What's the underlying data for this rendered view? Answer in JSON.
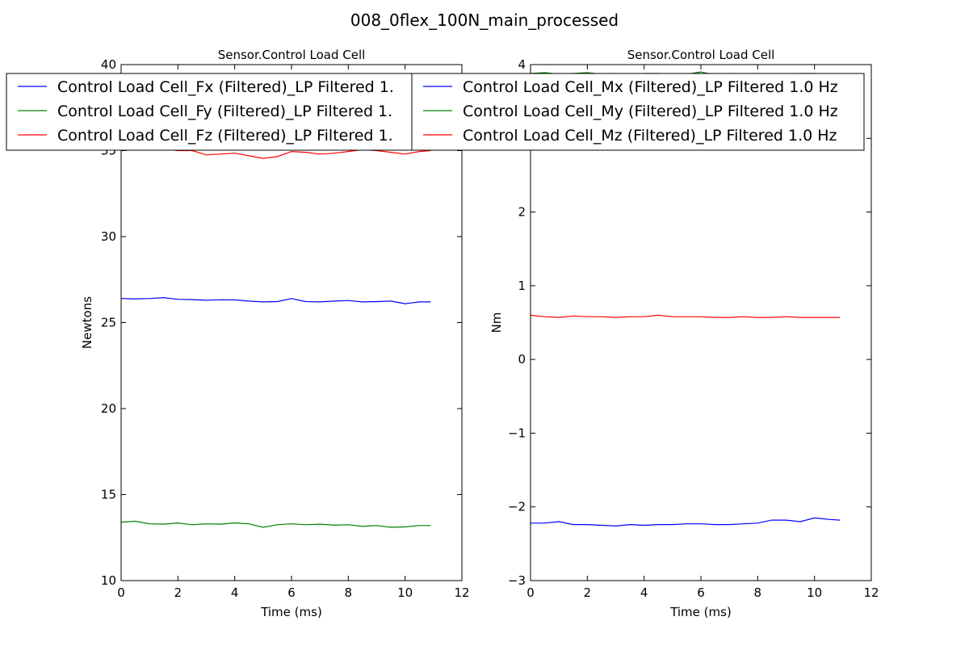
{
  "figure": {
    "title": "008_0flex_100N_main_processed"
  },
  "chart_data": [
    {
      "type": "line",
      "title": "Sensor.Control Load Cell",
      "xlabel": "Time (ms)",
      "ylabel": "Newtons",
      "xlim": [
        0,
        12
      ],
      "ylim": [
        10,
        40
      ],
      "xticks": [
        "0",
        "2",
        "4",
        "6",
        "8",
        "10",
        "12"
      ],
      "yticks": [
        "10",
        "15",
        "20",
        "25",
        "30",
        "35",
        "40"
      ],
      "grid": false,
      "legend_position": "top",
      "legend_labels": [
        "Control Load Cell_Fx (Filtered)_LP Filtered 1.",
        "Control Load Cell_Fy (Filtered)_LP Filtered 1.",
        "Control Load Cell_Fz (Filtered)_LP Filtered 1."
      ],
      "series": [
        {
          "color": "#0000ff",
          "x": [
            0,
            0.5,
            1,
            1.5,
            2,
            2.5,
            3,
            3.5,
            4,
            4.5,
            5,
            5.5,
            6,
            6.5,
            7,
            7.5,
            8,
            8.5,
            9,
            9.5,
            10,
            10.5,
            10.9
          ],
          "y": [
            26.4,
            26.38,
            26.4,
            26.45,
            26.35,
            26.34,
            26.3,
            26.33,
            26.32,
            26.25,
            26.2,
            26.22,
            26.4,
            26.22,
            26.2,
            26.25,
            26.28,
            26.2,
            26.22,
            26.25,
            26.1,
            26.2,
            26.2
          ]
        },
        {
          "color": "#008000",
          "x": [
            0,
            0.5,
            1,
            1.5,
            2,
            2.5,
            3,
            3.5,
            4,
            4.5,
            5,
            5.5,
            6,
            6.5,
            7,
            7.5,
            8,
            8.5,
            9,
            9.5,
            10,
            10.5,
            10.9
          ],
          "y": [
            13.4,
            13.45,
            13.3,
            13.28,
            13.35,
            13.25,
            13.3,
            13.28,
            13.35,
            13.3,
            13.1,
            13.25,
            13.3,
            13.25,
            13.28,
            13.22,
            13.25,
            13.15,
            13.2,
            13.1,
            13.12,
            13.2,
            13.2
          ]
        },
        {
          "color": "#ff0000",
          "x": [
            0,
            0.5,
            1,
            1.5,
            2,
            2.5,
            3,
            3.5,
            4,
            4.5,
            5,
            5.5,
            6,
            6.5,
            7,
            7.5,
            8,
            8.5,
            9,
            9.5,
            10,
            10.5,
            10.9
          ],
          "y": [
            35.0,
            35.05,
            35.2,
            35.1,
            35.0,
            35.0,
            34.75,
            34.8,
            34.85,
            34.7,
            34.55,
            34.65,
            34.95,
            34.9,
            34.8,
            34.85,
            34.95,
            35.05,
            35.0,
            34.9,
            34.8,
            34.95,
            35.0
          ]
        }
      ]
    },
    {
      "type": "line",
      "title": "Sensor.Control Load Cell",
      "xlabel": "Time (ms)",
      "ylabel": "Nm",
      "xlim": [
        0,
        12
      ],
      "ylim": [
        -3,
        4
      ],
      "xticks": [
        "0",
        "2",
        "4",
        "6",
        "8",
        "10",
        "12"
      ],
      "yticks": [
        "−3",
        "−2",
        "−1",
        "0",
        "1",
        "2",
        "3",
        "4"
      ],
      "grid": false,
      "legend_position": "top",
      "legend_labels": [
        "Control Load Cell_Mx (Filtered)_LP Filtered 1.0 Hz",
        "Control Load Cell_My (Filtered)_LP Filtered 1.0 Hz",
        "Control Load Cell_Mz (Filtered)_LP Filtered 1.0 Hz"
      ],
      "series": [
        {
          "color": "#0000ff",
          "x": [
            0,
            0.5,
            1,
            1.5,
            2,
            2.5,
            3,
            3.5,
            4,
            4.5,
            5,
            5.5,
            6,
            6.5,
            7,
            7.5,
            8,
            8.5,
            9,
            9.5,
            10,
            10.5,
            10.9
          ],
          "y": [
            -2.22,
            -2.22,
            -2.2,
            -2.24,
            -2.24,
            -2.25,
            -2.26,
            -2.24,
            -2.25,
            -2.24,
            -2.24,
            -2.23,
            -2.23,
            -2.24,
            -2.24,
            -2.23,
            -2.22,
            -2.18,
            -2.18,
            -2.2,
            -2.15,
            -2.17,
            -2.18
          ]
        },
        {
          "color": "#008000",
          "x": [
            0,
            0.5,
            1,
            1.5,
            2,
            2.5,
            3,
            3.5,
            4,
            4.5,
            5,
            5.5,
            6,
            6.5,
            7,
            7.5,
            8,
            8.5,
            9,
            9.5,
            10,
            10.5,
            10.9
          ],
          "y": [
            3.88,
            3.89,
            3.87,
            3.88,
            3.89,
            3.87,
            3.88,
            3.86,
            3.88,
            3.88,
            3.86,
            3.87,
            3.9,
            3.86,
            3.88,
            3.87,
            3.88,
            3.86,
            3.87,
            3.88,
            3.88,
            3.86,
            3.88
          ]
        },
        {
          "color": "#ff0000",
          "x": [
            0,
            0.5,
            1,
            1.5,
            2,
            2.5,
            3,
            3.5,
            4,
            4.5,
            5,
            5.5,
            6,
            6.5,
            7,
            7.5,
            8,
            8.5,
            9,
            9.5,
            10,
            10.5,
            10.9
          ],
          "y": [
            0.6,
            0.58,
            0.57,
            0.59,
            0.58,
            0.58,
            0.57,
            0.58,
            0.58,
            0.6,
            0.58,
            0.58,
            0.58,
            0.57,
            0.57,
            0.58,
            0.57,
            0.57,
            0.58,
            0.57,
            0.57,
            0.57,
            0.57
          ]
        }
      ]
    }
  ]
}
